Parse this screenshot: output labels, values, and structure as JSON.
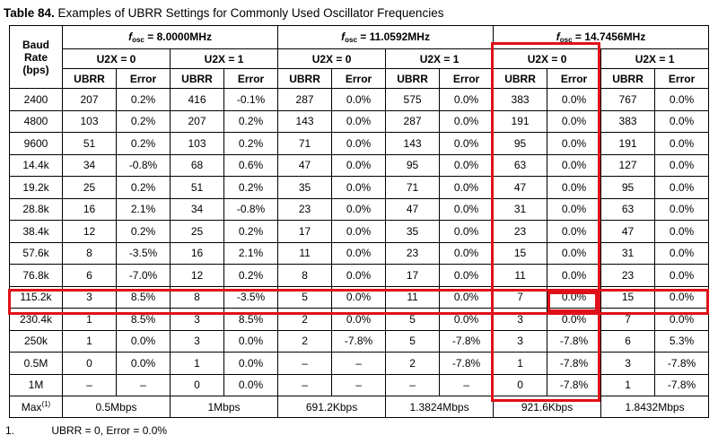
{
  "caption": {
    "number": "Table 84.",
    "title": "Examples of UBRR Settings for Commonly Used Oscillator Frequencies"
  },
  "header": {
    "baud_rate": [
      "Baud",
      "Rate",
      "(bps)"
    ],
    "fosc_symbol": "f",
    "fosc_sub": "osc",
    "fosc_eq": " = ",
    "frequencies": [
      "8.0000MHz",
      "11.0592MHz",
      "14.7456MHz"
    ],
    "u2x": [
      "U2X = 0",
      "U2X = 1"
    ],
    "ubrr_label": "UBRR",
    "error_label": "Error"
  },
  "rows": [
    {
      "baud": "2400",
      "values": [
        "207",
        "0.2%",
        "416",
        "-0.1%",
        "287",
        "0.0%",
        "575",
        "0.0%",
        "383",
        "0.0%",
        "767",
        "0.0%"
      ]
    },
    {
      "baud": "4800",
      "values": [
        "103",
        "0.2%",
        "207",
        "0.2%",
        "143",
        "0.0%",
        "287",
        "0.0%",
        "191",
        "0.0%",
        "383",
        "0.0%"
      ]
    },
    {
      "baud": "9600",
      "values": [
        "51",
        "0.2%",
        "103",
        "0.2%",
        "71",
        "0.0%",
        "143",
        "0.0%",
        "95",
        "0.0%",
        "191",
        "0.0%"
      ]
    },
    {
      "baud": "14.4k",
      "values": [
        "34",
        "-0.8%",
        "68",
        "0.6%",
        "47",
        "0.0%",
        "95",
        "0.0%",
        "63",
        "0.0%",
        "127",
        "0.0%"
      ]
    },
    {
      "baud": "19.2k",
      "values": [
        "25",
        "0.2%",
        "51",
        "0.2%",
        "35",
        "0.0%",
        "71",
        "0.0%",
        "47",
        "0.0%",
        "95",
        "0.0%"
      ]
    },
    {
      "baud": "28.8k",
      "values": [
        "16",
        "2.1%",
        "34",
        "-0.8%",
        "23",
        "0.0%",
        "47",
        "0.0%",
        "31",
        "0.0%",
        "63",
        "0.0%"
      ]
    },
    {
      "baud": "38.4k",
      "values": [
        "12",
        "0.2%",
        "25",
        "0.2%",
        "17",
        "0.0%",
        "35",
        "0.0%",
        "23",
        "0.0%",
        "47",
        "0.0%"
      ]
    },
    {
      "baud": "57.6k",
      "values": [
        "8",
        "-3.5%",
        "16",
        "2.1%",
        "11",
        "0.0%",
        "23",
        "0.0%",
        "15",
        "0.0%",
        "31",
        "0.0%"
      ]
    },
    {
      "baud": "76.8k",
      "values": [
        "6",
        "-7.0%",
        "12",
        "0.2%",
        "8",
        "0.0%",
        "17",
        "0.0%",
        "11",
        "0.0%",
        "23",
        "0.0%"
      ]
    },
    {
      "baud": "115.2k",
      "values": [
        "3",
        "8.5%",
        "8",
        "-3.5%",
        "5",
        "0.0%",
        "11",
        "0.0%",
        "7",
        "0.0%",
        "15",
        "0.0%"
      ]
    },
    {
      "baud": "230.4k",
      "values": [
        "1",
        "8.5%",
        "3",
        "8.5%",
        "2",
        "0.0%",
        "5",
        "0.0%",
        "3",
        "0.0%",
        "7",
        "0.0%"
      ]
    },
    {
      "baud": "250k",
      "values": [
        "1",
        "0.0%",
        "3",
        "0.0%",
        "2",
        "-7.8%",
        "5",
        "-7.8%",
        "3",
        "-7.8%",
        "6",
        "5.3%"
      ]
    },
    {
      "baud": "0.5M",
      "values": [
        "0",
        "0.0%",
        "1",
        "0.0%",
        "–",
        "–",
        "2",
        "-7.8%",
        "1",
        "-7.8%",
        "3",
        "-7.8%"
      ]
    },
    {
      "baud": "1M",
      "values": [
        "–",
        "–",
        "0",
        "0.0%",
        "–",
        "–",
        "–",
        "–",
        "0",
        "-7.8%",
        "1",
        "-7.8%"
      ]
    }
  ],
  "max_row": {
    "label": "Max",
    "footnote_ref": "(1)",
    "values": [
      "0.5Mbps",
      "1Mbps",
      "691.2Kbps",
      "1.3824Mbps",
      "921.6Kbps",
      "1.8432Mbps"
    ]
  },
  "footnote": {
    "label": "1.",
    "text": "UBRR = 0, Error = 0.0%"
  },
  "highlight_color": "#e0101a"
}
